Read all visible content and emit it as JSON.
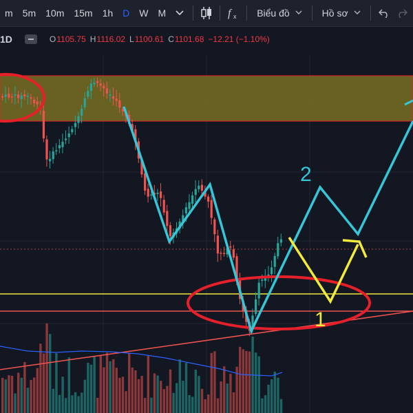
{
  "toolbar": {
    "timeframes": [
      "m",
      "5m",
      "10m",
      "15m",
      "1h",
      "D",
      "W",
      "M"
    ],
    "active_timeframe": "D",
    "chart_menu": "Biểu đồ",
    "profile_menu": "Hồ sơ"
  },
  "legend": {
    "symbol": "1D",
    "open_label": "O",
    "open": "1105.75",
    "high_label": "H",
    "high": "1116.02",
    "low_label": "L",
    "low": "1100.61",
    "close_label": "C",
    "close": "1101.68",
    "change": "−12.21 (−1.10%)"
  },
  "annotations": {
    "wave_1": "1",
    "wave_2": "2"
  },
  "colors": {
    "bull": "#26a69a",
    "bear": "#ef5350",
    "zone": "#8c7d1f",
    "cyan": "#35c6d8",
    "yellow": "#f2ea3c",
    "ellipse": "#e5202b",
    "volume_ma": "#2962ff"
  }
}
